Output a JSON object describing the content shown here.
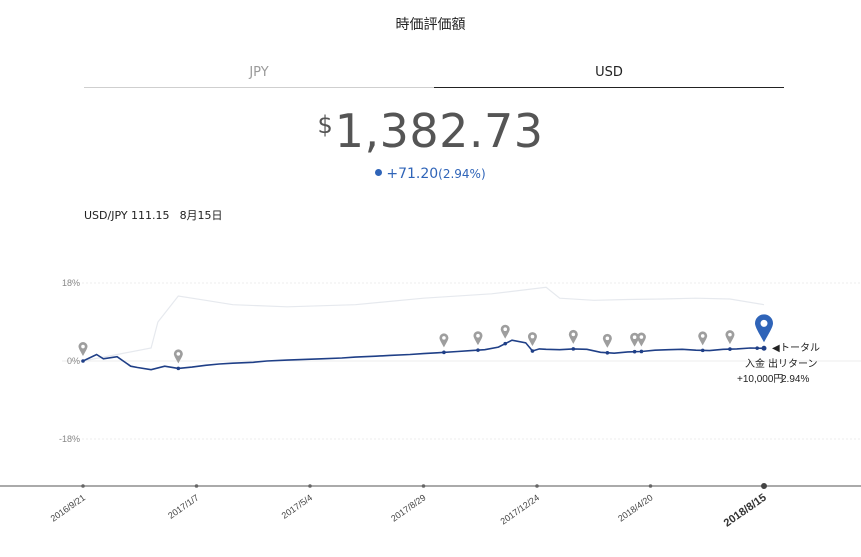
{
  "page": {
    "title": "時価評価額"
  },
  "tabs": [
    {
      "label": "JPY",
      "active": false
    },
    {
      "label": "USD",
      "active": true
    }
  ],
  "valuation": {
    "currency_symbol": "$",
    "amount": "1,382.73",
    "change": "+71.20",
    "change_pct": "(2.94%)"
  },
  "fx": {
    "pair_label": "USD/JPY 111.15",
    "date_label": "8月15日"
  },
  "colors": {
    "total_return": "#1f3f87",
    "deposit_line": "#e6e9ee",
    "marker": "#9e9e9e",
    "accent": "#2f64b8"
  },
  "legend": {
    "total_return": "トータル",
    "deposit": "入金",
    "withdraw_return": "出リターン",
    "deposit_value": "+10,000円",
    "return_value": "2.94%"
  },
  "chart_data": {
    "type": "line",
    "x_ticks": [
      "2016/9/21",
      "2017/1/7",
      "2017/5/4",
      "2017/8/29",
      "2017/12/24",
      "2018/4/20",
      "2018/8/15"
    ],
    "y_ticks": [
      "18%",
      "0%",
      "-18%"
    ],
    "ylim": [
      -0.29,
      0.19
    ],
    "series": [
      {
        "name": "トータル",
        "x": [
          0.0,
          0.02,
          0.03,
          0.05,
          0.07,
          0.08,
          0.1,
          0.12,
          0.14,
          0.16,
          0.18,
          0.2,
          0.22,
          0.25,
          0.27,
          0.3,
          0.33,
          0.35,
          0.38,
          0.4,
          0.43,
          0.45,
          0.48,
          0.5,
          0.52,
          0.55,
          0.57,
          0.59,
          0.61,
          0.63,
          0.65,
          0.66,
          0.67,
          0.68,
          0.7,
          0.72,
          0.74,
          0.76,
          0.78,
          0.8,
          0.82,
          0.84,
          0.86,
          0.88,
          0.9,
          0.92,
          0.94,
          0.96,
          0.98,
          1.0
        ],
        "values": [
          0.0,
          0.015,
          0.005,
          0.01,
          -0.012,
          -0.015,
          -0.02,
          -0.012,
          -0.017,
          -0.014,
          -0.01,
          -0.007,
          -0.005,
          -0.003,
          0.0,
          0.002,
          0.004,
          0.005,
          0.007,
          0.009,
          0.011,
          0.013,
          0.015,
          0.017,
          0.019,
          0.022,
          0.024,
          0.026,
          0.032,
          0.048,
          0.042,
          0.023,
          0.028,
          0.027,
          0.026,
          0.028,
          0.027,
          0.02,
          0.018,
          0.021,
          0.022,
          0.025,
          0.026,
          0.027,
          0.025,
          0.024,
          0.027,
          0.028,
          0.03,
          0.0294
        ]
      },
      {
        "name": "入金",
        "x": [
          0.0,
          0.05,
          0.1,
          0.11,
          0.14,
          0.18,
          0.22,
          0.3,
          0.4,
          0.5,
          0.6,
          0.68,
          0.7,
          0.75,
          0.8,
          0.85,
          0.9,
          0.95,
          1.0
        ],
        "values": [
          0.0,
          0.015,
          0.03,
          0.09,
          0.15,
          0.14,
          0.13,
          0.125,
          0.13,
          0.145,
          0.155,
          0.17,
          0.145,
          0.14,
          0.142,
          0.143,
          0.145,
          0.143,
          0.13
        ]
      }
    ],
    "events_x": [
      0.0,
      0.14,
      0.53,
      0.58,
      0.62,
      0.66,
      0.72,
      0.77,
      0.81,
      0.82,
      0.91,
      0.95,
      0.99
    ]
  }
}
